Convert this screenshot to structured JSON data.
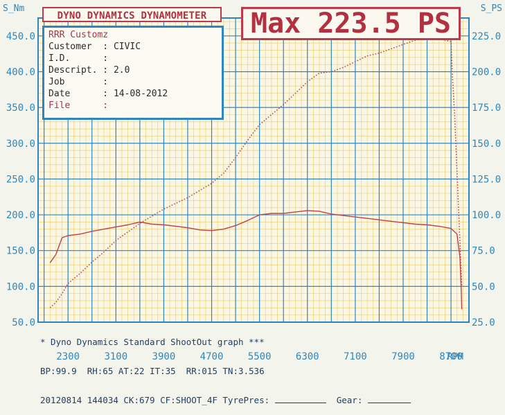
{
  "header": {
    "title": "DYNO DYNAMICS DYNAMOMETER",
    "max_label": "Max 223.5 PS"
  },
  "info": {
    "shop": "RRR Customz",
    "rows": [
      {
        "label": "Customer",
        "value": "CIVIC"
      },
      {
        "label": "I.D.",
        "value": ""
      },
      {
        "label": "Descript.",
        "value": "2.0"
      },
      {
        "label": "Job",
        "value": ""
      },
      {
        "label": "Date",
        "value": "14-08-2012"
      },
      {
        "label": "File",
        "value": ""
      }
    ]
  },
  "footer": {
    "line1": "* Dyno Dynamics Standard ShootOut graph ***",
    "line2": "BP:99.9  RH:65 AT:22 IT:35  RR:015 TN:3.536",
    "line3_prefix": "20120814 144034 CK:679 CF:SHOOT_4F TyrePres:",
    "gear_label": "Gear:"
  },
  "colors": {
    "torque": "#c2404a",
    "power": "#c2404a",
    "grid_major": "#2e86c1",
    "grid_minor": "#e9d27a",
    "axis_text": "#2e86c1"
  },
  "chart_data": {
    "type": "line",
    "left_axis_label": "S_Nm",
    "right_axis_label": "S_PS",
    "x_axis_label": "RPM",
    "xlim": [
      1800,
      9000
    ],
    "x_ticks": [
      2300,
      3100,
      3900,
      4700,
      5500,
      6300,
      7100,
      7900,
      8700
    ],
    "y_left_lim": [
      50,
      475
    ],
    "y_left_ticks": [
      50.0,
      100.0,
      150.0,
      200.0,
      250.0,
      300.0,
      350.0,
      400.0,
      450.0
    ],
    "y_right_lim": [
      25,
      237.5
    ],
    "y_right_ticks": [
      25.0,
      50.0,
      75.0,
      100.0,
      125.0,
      150.0,
      175.0,
      200.0,
      225.0
    ],
    "grid": true,
    "series": [
      {
        "axis": "left",
        "style": "solid",
        "points": [
          [
            2000,
            133
          ],
          [
            2100,
            145
          ],
          [
            2200,
            168
          ],
          [
            2300,
            171
          ],
          [
            2500,
            173
          ],
          [
            2700,
            177
          ],
          [
            2900,
            180
          ],
          [
            3100,
            183
          ],
          [
            3300,
            186
          ],
          [
            3500,
            190
          ],
          [
            3700,
            187
          ],
          [
            3900,
            186
          ],
          [
            4100,
            184
          ],
          [
            4300,
            182
          ],
          [
            4500,
            179
          ],
          [
            4700,
            178
          ],
          [
            4900,
            180
          ],
          [
            5100,
            185
          ],
          [
            5300,
            192
          ],
          [
            5500,
            200
          ],
          [
            5700,
            202
          ],
          [
            5900,
            202
          ],
          [
            6100,
            204
          ],
          [
            6300,
            206
          ],
          [
            6500,
            205
          ],
          [
            6700,
            201
          ],
          [
            6900,
            199
          ],
          [
            7100,
            197
          ],
          [
            7300,
            195
          ],
          [
            7500,
            193
          ],
          [
            7700,
            191
          ],
          [
            7900,
            189
          ],
          [
            8100,
            187
          ],
          [
            8300,
            186
          ],
          [
            8500,
            184
          ],
          [
            8700,
            181
          ],
          [
            8800,
            173
          ],
          [
            8850,
            140
          ],
          [
            8870,
            95
          ],
          [
            8880,
            68
          ]
        ]
      },
      {
        "axis": "right",
        "style": "dotted",
        "points": [
          [
            2000,
            35
          ],
          [
            2100,
            39
          ],
          [
            2200,
            45
          ],
          [
            2300,
            52
          ],
          [
            2500,
            59
          ],
          [
            2700,
            67
          ],
          [
            2900,
            74
          ],
          [
            3100,
            82
          ],
          [
            3300,
            88
          ],
          [
            3500,
            94
          ],
          [
            3700,
            99
          ],
          [
            3900,
            104
          ],
          [
            4100,
            108
          ],
          [
            4300,
            112
          ],
          [
            4500,
            117
          ],
          [
            4700,
            122
          ],
          [
            4900,
            129
          ],
          [
            5100,
            140
          ],
          [
            5300,
            152
          ],
          [
            5500,
            163
          ],
          [
            5700,
            170
          ],
          [
            5900,
            177
          ],
          [
            6100,
            185
          ],
          [
            6300,
            193
          ],
          [
            6500,
            199
          ],
          [
            6700,
            200
          ],
          [
            6900,
            203
          ],
          [
            7100,
            207
          ],
          [
            7300,
            211
          ],
          [
            7500,
            213
          ],
          [
            7700,
            216
          ],
          [
            7900,
            219
          ],
          [
            8100,
            222
          ],
          [
            8300,
            223.5
          ],
          [
            8500,
            223
          ],
          [
            8600,
            222
          ],
          [
            8700,
            221
          ],
          [
            8720,
            200
          ],
          [
            8760,
            170
          ],
          [
            8800,
            130
          ],
          [
            8830,
            100
          ],
          [
            8860,
            70
          ],
          [
            8880,
            50
          ]
        ]
      }
    ]
  }
}
